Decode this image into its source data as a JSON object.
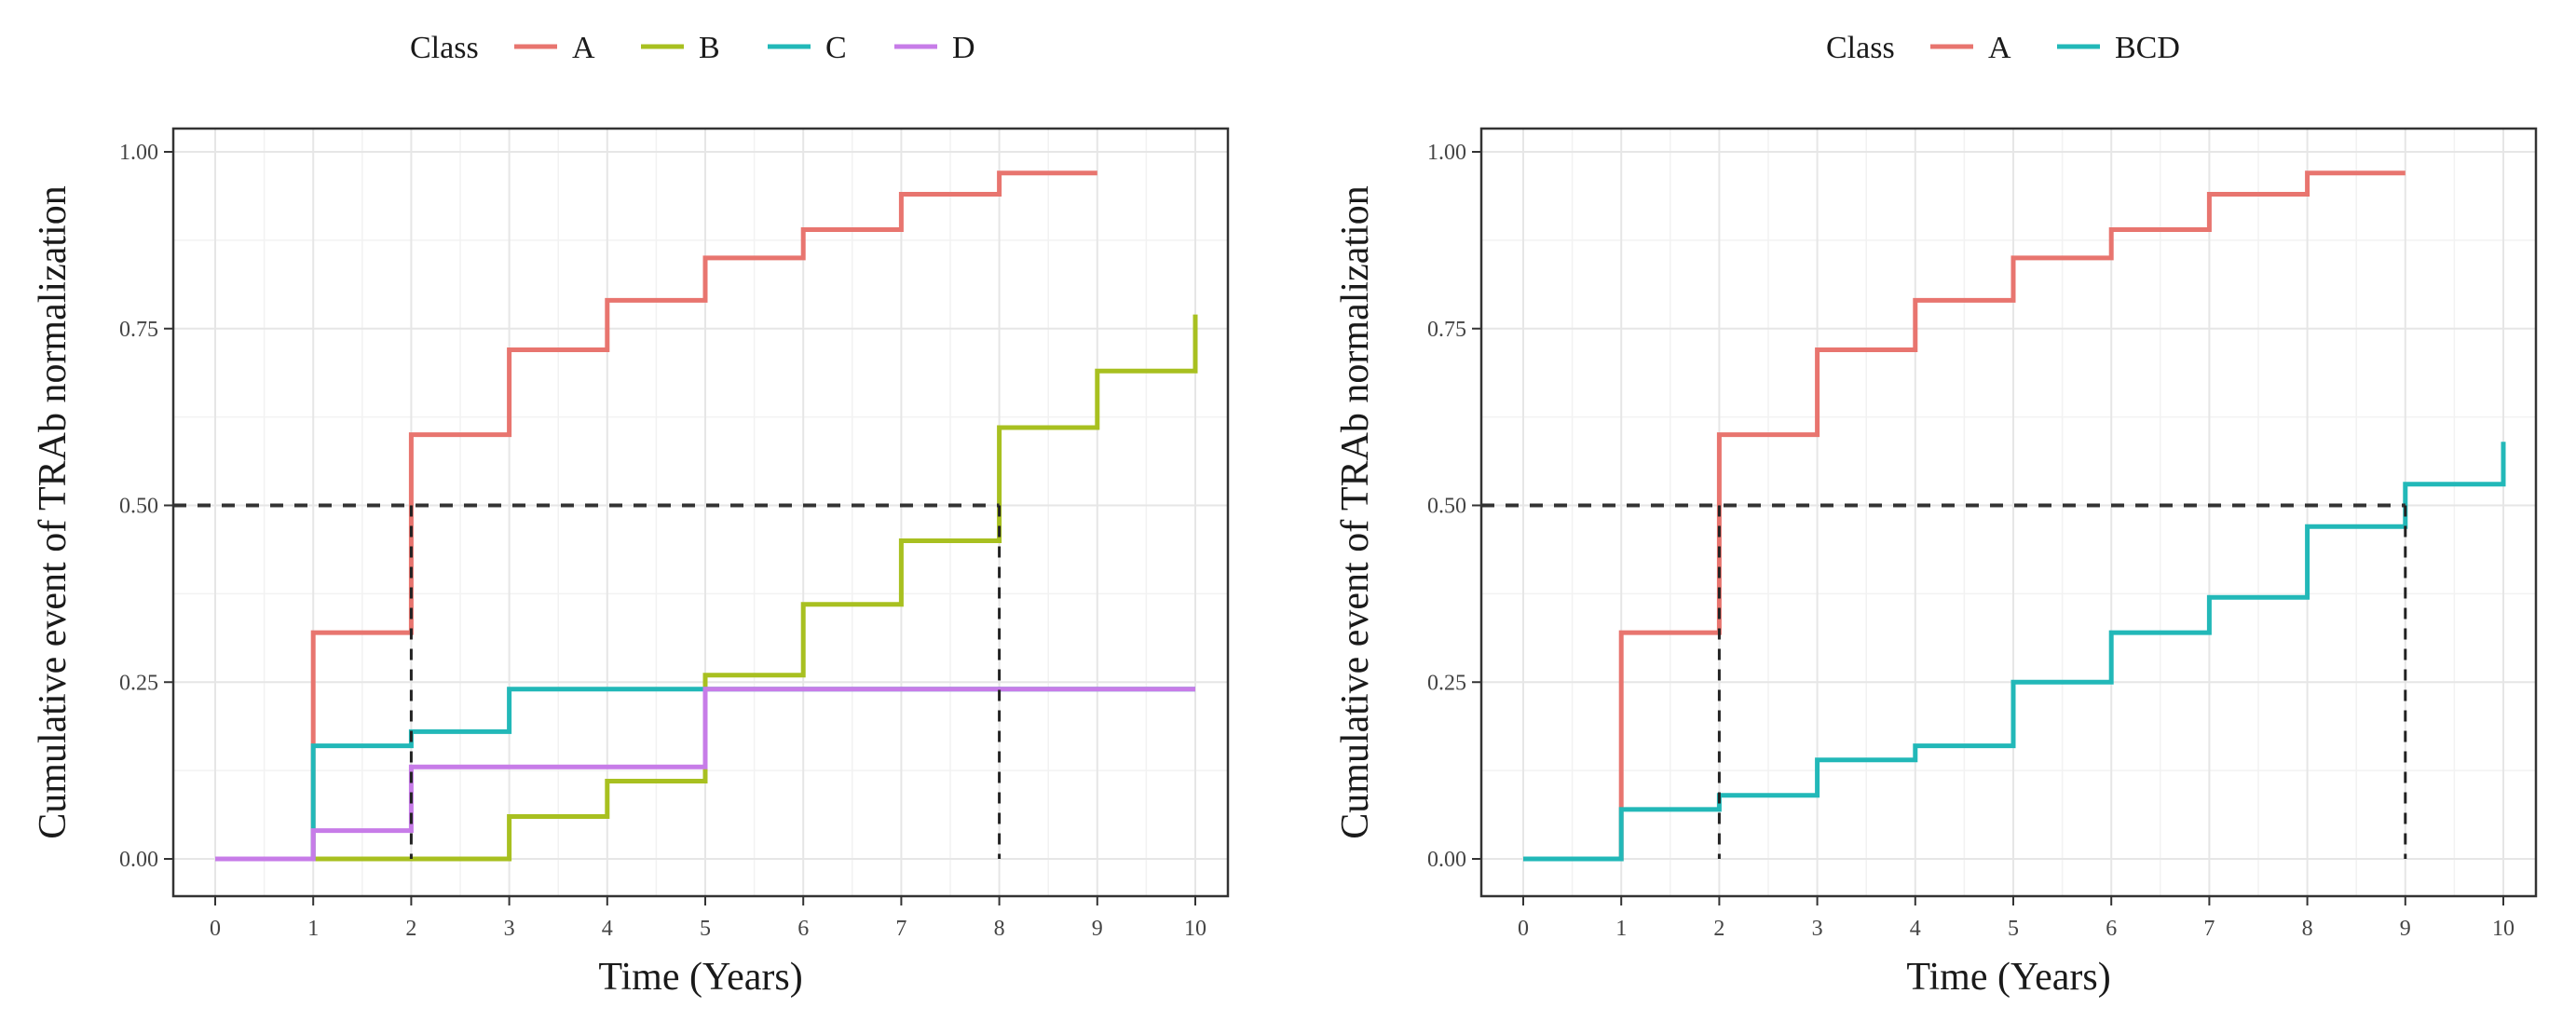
{
  "chart_data": [
    {
      "type": "line",
      "step": true,
      "legend_title": "Class",
      "legend_position": "top",
      "xlabel": "Time (Years)",
      "ylabel": "Cumulative event of TRAb normalization",
      "xlim": [
        0,
        10
      ],
      "ylim": [
        0,
        1
      ],
      "xticks": [
        "0",
        "1",
        "2",
        "3",
        "4",
        "5",
        "6",
        "7",
        "8",
        "9",
        "10"
      ],
      "yticks": [
        "0.00",
        "0.25",
        "0.50",
        "0.75",
        "1.00"
      ],
      "grid": true,
      "reference_lines": {
        "y": 0.5,
        "x_markers": [
          2,
          8
        ]
      },
      "series": [
        {
          "name": "A",
          "color": "#E8756F",
          "x": [
            0,
            1,
            1,
            2,
            2,
            3,
            3,
            4,
            4,
            5,
            5,
            6,
            6,
            7,
            7,
            8,
            8,
            9
          ],
          "y": [
            0,
            0,
            0.32,
            0.32,
            0.6,
            0.6,
            0.72,
            0.72,
            0.79,
            0.79,
            0.85,
            0.85,
            0.89,
            0.89,
            0.94,
            0.94,
            0.97,
            0.97
          ]
        },
        {
          "name": "B",
          "color": "#A8C020",
          "x": [
            0,
            2,
            2,
            3,
            3,
            4,
            4,
            5,
            5,
            6,
            6,
            7,
            7,
            8,
            8,
            9,
            9,
            10,
            10
          ],
          "y": [
            0,
            0,
            0,
            0,
            0.06,
            0.06,
            0.11,
            0.11,
            0.26,
            0.26,
            0.36,
            0.36,
            0.45,
            0.45,
            0.61,
            0.61,
            0.69,
            0.69,
            0.77
          ]
        },
        {
          "name": "C",
          "color": "#22B8B8",
          "x": [
            0,
            1,
            1,
            2,
            2,
            3,
            3,
            10
          ],
          "y": [
            0,
            0,
            0.16,
            0.16,
            0.18,
            0.18,
            0.24,
            0.24
          ]
        },
        {
          "name": "D",
          "color": "#C77CE8",
          "x": [
            0,
            1,
            1,
            2,
            2,
            5,
            5,
            10
          ],
          "y": [
            0,
            0,
            0.04,
            0.04,
            0.13,
            0.13,
            0.24,
            0.24
          ]
        }
      ]
    },
    {
      "type": "line",
      "step": true,
      "legend_title": "Class",
      "legend_position": "top",
      "xlabel": "Time (Years)",
      "ylabel": "Cumulative event of TRAb normalization",
      "xlim": [
        0,
        10
      ],
      "ylim": [
        0,
        1
      ],
      "xticks": [
        "0",
        "1",
        "2",
        "3",
        "4",
        "5",
        "6",
        "7",
        "8",
        "9",
        "10"
      ],
      "yticks": [
        "0.00",
        "0.25",
        "0.50",
        "0.75",
        "1.00"
      ],
      "grid": true,
      "reference_lines": {
        "y": 0.5,
        "x_markers": [
          2,
          9
        ]
      },
      "series": [
        {
          "name": "A",
          "color": "#E8756F",
          "x": [
            0,
            1,
            1,
            2,
            2,
            3,
            3,
            4,
            4,
            5,
            5,
            6,
            6,
            7,
            7,
            8,
            8,
            9
          ],
          "y": [
            0,
            0,
            0.32,
            0.32,
            0.6,
            0.6,
            0.72,
            0.72,
            0.79,
            0.79,
            0.85,
            0.85,
            0.89,
            0.89,
            0.94,
            0.94,
            0.97,
            0.97
          ]
        },
        {
          "name": "BCD",
          "color": "#22B8B8",
          "x": [
            0,
            1,
            1,
            2,
            2,
            3,
            3,
            4,
            4,
            5,
            5,
            6,
            6,
            7,
            7,
            8,
            8,
            9,
            9,
            10,
            10
          ],
          "y": [
            0,
            0,
            0.07,
            0.07,
            0.09,
            0.09,
            0.14,
            0.14,
            0.16,
            0.16,
            0.25,
            0.25,
            0.32,
            0.32,
            0.37,
            0.37,
            0.47,
            0.47,
            0.53,
            0.53,
            0.59
          ]
        }
      ]
    }
  ]
}
